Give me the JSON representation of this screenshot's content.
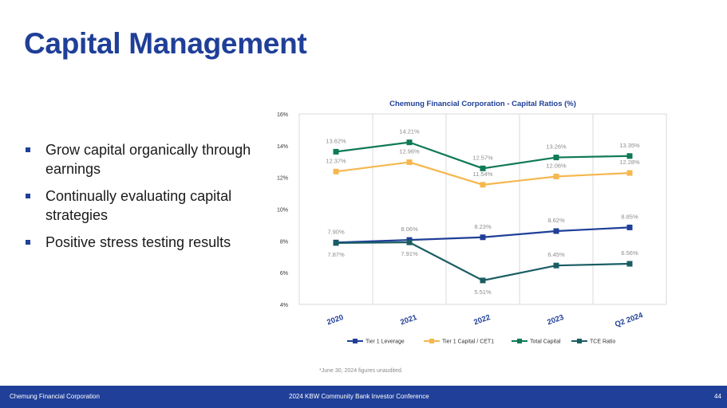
{
  "slide": {
    "title": "Capital Management",
    "bullets": [
      "Grow capital organically through earnings",
      "Continually evaluating capital strategies",
      "Positive stress testing results"
    ],
    "footnote": "*June 30, 2024 figures unaudited."
  },
  "footer": {
    "company": "Chemung Financial Corporation",
    "event": "2024 KBW Community Bank Investor Conference",
    "page": "44"
  },
  "chart_data": {
    "type": "line",
    "title": "Chemung Financial Corporation - Capital Ratios (%)",
    "categories": [
      "2020",
      "2021",
      "2022",
      "2023",
      "Q2 2024"
    ],
    "ylim": [
      4,
      16
    ],
    "yticks": [
      "4%",
      "6%",
      "8%",
      "10%",
      "12%",
      "14%",
      "16%"
    ],
    "series": [
      {
        "name": "Tier 1 Leverage",
        "color": "#1f3f98",
        "values": [
          7.9,
          8.06,
          8.23,
          8.62,
          8.85
        ],
        "labels": [
          "7.90%",
          "8.06%",
          "8.23%",
          "8.62%",
          "8.85%"
        ],
        "label_pos": [
          "above",
          "above",
          "above",
          "above",
          "above"
        ]
      },
      {
        "name": "Tier 1 Capital / CET1",
        "color": "#f6b74e",
        "values": [
          12.37,
          12.96,
          11.54,
          12.06,
          12.28
        ],
        "labels": [
          "12.37%",
          "12.96%",
          "11.54%",
          "12.06%",
          "12.28%"
        ],
        "label_pos": [
          "above",
          "above",
          "above",
          "above",
          "above"
        ]
      },
      {
        "name": "Total Capital",
        "color": "#0f7a55",
        "values": [
          13.62,
          14.21,
          12.57,
          13.26,
          13.35
        ],
        "labels": [
          "13.62%",
          "14.21%",
          "12.57%",
          "13.26%",
          "13.35%"
        ],
        "label_pos": [
          "above",
          "above",
          "above",
          "above",
          "above"
        ]
      },
      {
        "name": "TCE Ratio",
        "color": "#1a5d63",
        "values": [
          7.87,
          7.91,
          5.51,
          6.45,
          6.56
        ],
        "labels": [
          "7.87%",
          "7.91%",
          "5.51%",
          "6.45%",
          "6.56%"
        ],
        "label_pos": [
          "below",
          "below",
          "below",
          "above",
          "above"
        ]
      }
    ]
  }
}
